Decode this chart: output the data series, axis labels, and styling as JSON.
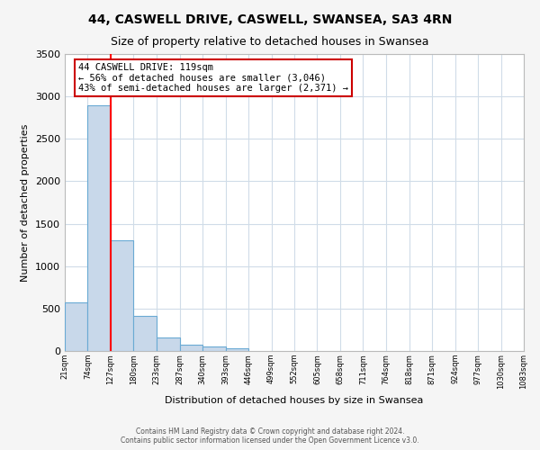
{
  "title": "44, CASWELL DRIVE, CASWELL, SWANSEA, SA3 4RN",
  "subtitle": "Size of property relative to detached houses in Swansea",
  "xlabel": "Distribution of detached houses by size in Swansea",
  "ylabel": "Number of detached properties",
  "bin_edges": [
    21,
    74,
    127,
    180,
    233,
    287,
    340,
    393,
    446,
    499,
    552,
    605,
    658,
    711,
    764,
    818,
    871,
    924,
    977,
    1030,
    1083
  ],
  "bin_counts": [
    570,
    2900,
    1300,
    415,
    160,
    75,
    50,
    30,
    0,
    0,
    0,
    0,
    0,
    0,
    0,
    0,
    0,
    0,
    0,
    0
  ],
  "bar_color": "#c8d8ea",
  "bar_edge_color": "#6aaad4",
  "red_line_x": 127,
  "annotation_title": "44 CASWELL DRIVE: 119sqm",
  "annotation_line1": "← 56% of detached houses are smaller (3,046)",
  "annotation_line2": "43% of semi-detached houses are larger (2,371) →",
  "annotation_box_facecolor": "#ffffff",
  "annotation_box_edgecolor": "#cc0000",
  "ylim": [
    0,
    3500
  ],
  "yticks": [
    0,
    500,
    1000,
    1500,
    2000,
    2500,
    3000,
    3500
  ],
  "footer1": "Contains HM Land Registry data © Crown copyright and database right 2024.",
  "footer2": "Contains public sector information licensed under the Open Government Licence v3.0.",
  "fig_facecolor": "#f5f5f5",
  "ax_facecolor": "#ffffff",
  "grid_color": "#d0dce8",
  "title_fontsize": 10,
  "subtitle_fontsize": 9,
  "tick_labels": [
    "21sqm",
    "74sqm",
    "127sqm",
    "180sqm",
    "233sqm",
    "287sqm",
    "340sqm",
    "393sqm",
    "446sqm",
    "499sqm",
    "552sqm",
    "605sqm",
    "658sqm",
    "711sqm",
    "764sqm",
    "818sqm",
    "871sqm",
    "924sqm",
    "977sqm",
    "1030sqm",
    "1083sqm"
  ]
}
